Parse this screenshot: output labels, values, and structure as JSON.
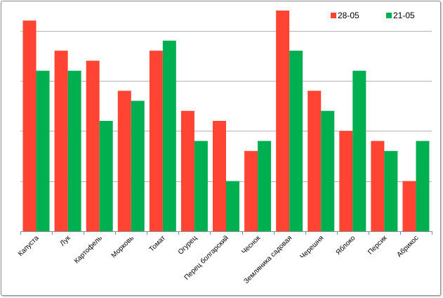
{
  "chart_data": {
    "type": "bar",
    "categories": [
      "Капуста",
      "Лук",
      "Картофель",
      "Морковь",
      "Томат",
      "Огурец",
      "Перец болгарский",
      "Чеснок",
      "Земляника садовая",
      "Черешня",
      "Яблоко",
      "Персик",
      "Абрикос"
    ],
    "series": [
      {
        "name": "28-05",
        "color": "#ff4433",
        "values": [
          21,
          18,
          17,
          14,
          18,
          12,
          11,
          8,
          22,
          14,
          10,
          9,
          5
        ]
      },
      {
        "name": "21-05",
        "color": "#00b050",
        "values": [
          16,
          16,
          11,
          13,
          19,
          9,
          5,
          9,
          18,
          12,
          16,
          8,
          9
        ]
      }
    ],
    "ylim": [
      0,
      22
    ],
    "y_gridlines": [
      0,
      5,
      10,
      15,
      20
    ],
    "grid": true,
    "y_tick_labels_visible": false,
    "legend_position": "top-right",
    "title": "",
    "xlabel": "",
    "ylabel": ""
  }
}
